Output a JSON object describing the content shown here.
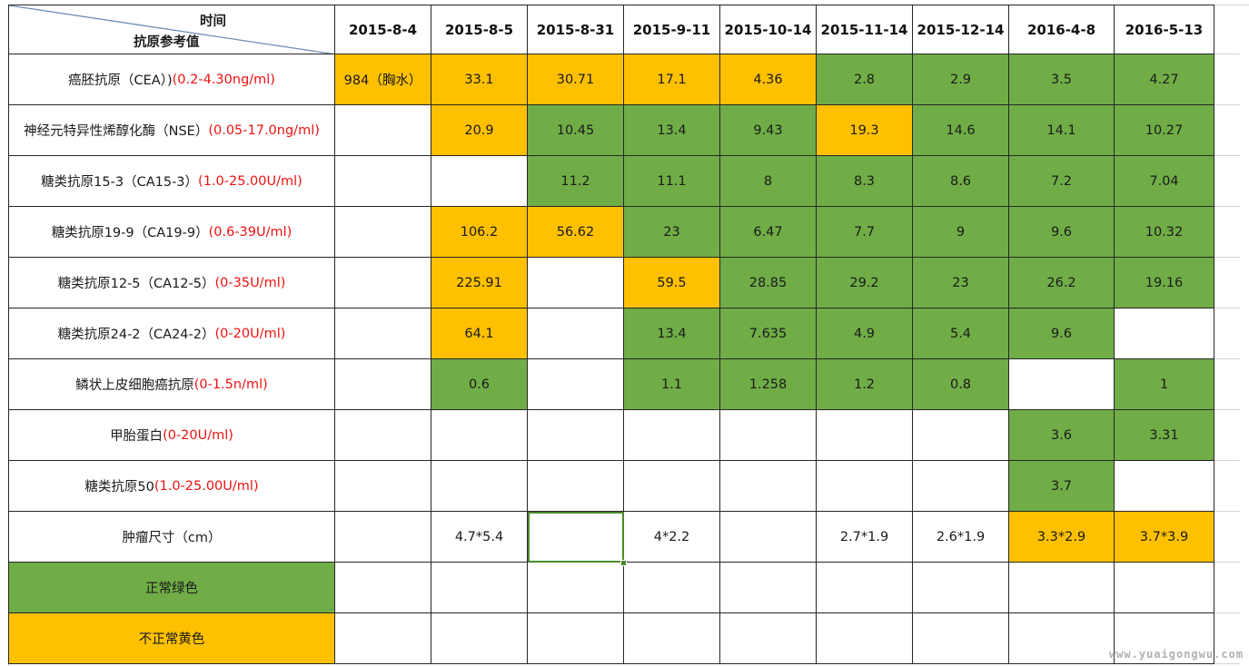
{
  "sheet": {
    "corner_time": "时间",
    "corner_ref": "抗原参考值",
    "dates": [
      "2015-8-4",
      "2015-8-5",
      "2015-8-31",
      "2015-9-11",
      "2015-10-14",
      "2015-11-14",
      "2015-12-14",
      "2016-4-8",
      "2016-5-13"
    ],
    "rows": [
      {
        "name": "癌胚抗原（CEA）)",
        "range": "(0.2-4.30ng/ml)",
        "cells": [
          {
            "v": "984（胸水）",
            "c": "y"
          },
          {
            "v": "33.1",
            "c": "y"
          },
          {
            "v": "30.71",
            "c": "y"
          },
          {
            "v": "17.1",
            "c": "y"
          },
          {
            "v": "4.36",
            "c": "y"
          },
          {
            "v": "2.8",
            "c": "g"
          },
          {
            "v": "2.9",
            "c": "g"
          },
          {
            "v": "3.5",
            "c": "g"
          },
          {
            "v": "4.27",
            "c": "g"
          }
        ]
      },
      {
        "name": "神经元特异性烯醇化酶（NSE）",
        "range": "(0.05-17.0ng/ml)",
        "cells": [
          {
            "v": "",
            "c": ""
          },
          {
            "v": "20.9",
            "c": "y"
          },
          {
            "v": "10.45",
            "c": "g"
          },
          {
            "v": "13.4",
            "c": "g"
          },
          {
            "v": "9.43",
            "c": "g"
          },
          {
            "v": "19.3",
            "c": "y"
          },
          {
            "v": "14.6",
            "c": "g"
          },
          {
            "v": "14.1",
            "c": "g"
          },
          {
            "v": "10.27",
            "c": "g"
          }
        ]
      },
      {
        "name": "糖类抗原15-3（CA15-3）",
        "range": "(1.0-25.00U/ml)",
        "cells": [
          {
            "v": "",
            "c": ""
          },
          {
            "v": "",
            "c": ""
          },
          {
            "v": "11.2",
            "c": "g"
          },
          {
            "v": "11.1",
            "c": "g"
          },
          {
            "v": "8",
            "c": "g"
          },
          {
            "v": "8.3",
            "c": "g"
          },
          {
            "v": "8.6",
            "c": "g"
          },
          {
            "v": "7.2",
            "c": "g"
          },
          {
            "v": "7.04",
            "c": "g"
          }
        ]
      },
      {
        "name": "糖类抗原19-9（CA19-9）",
        "range": "(0.6-39U/ml)",
        "cells": [
          {
            "v": "",
            "c": ""
          },
          {
            "v": "106.2",
            "c": "y"
          },
          {
            "v": "56.62",
            "c": "y"
          },
          {
            "v": "23",
            "c": "g"
          },
          {
            "v": "6.47",
            "c": "g"
          },
          {
            "v": "7.7",
            "c": "g"
          },
          {
            "v": "9",
            "c": "g"
          },
          {
            "v": "9.6",
            "c": "g"
          },
          {
            "v": "10.32",
            "c": "g"
          }
        ]
      },
      {
        "name": "糖类抗原12-5（CA12-5）",
        "range": "(0-35U/ml)",
        "cells": [
          {
            "v": "",
            "c": ""
          },
          {
            "v": "225.91",
            "c": "y"
          },
          {
            "v": "",
            "c": ""
          },
          {
            "v": "59.5",
            "c": "y"
          },
          {
            "v": "28.85",
            "c": "g"
          },
          {
            "v": "29.2",
            "c": "g"
          },
          {
            "v": "23",
            "c": "g"
          },
          {
            "v": "26.2",
            "c": "g"
          },
          {
            "v": "19.16",
            "c": "g"
          }
        ]
      },
      {
        "name": "糖类抗原24-2（CA24-2）",
        "range": "(0-20U/ml)",
        "cells": [
          {
            "v": "",
            "c": ""
          },
          {
            "v": "64.1",
            "c": "y"
          },
          {
            "v": "",
            "c": ""
          },
          {
            "v": "13.4",
            "c": "g"
          },
          {
            "v": "7.635",
            "c": "g"
          },
          {
            "v": "4.9",
            "c": "g"
          },
          {
            "v": "5.4",
            "c": "g"
          },
          {
            "v": "9.6",
            "c": "g"
          },
          {
            "v": "",
            "c": ""
          }
        ]
      },
      {
        "name": "鳞状上皮细胞癌抗原",
        "range": "(0-1.5n/ml)",
        "cells": [
          {
            "v": "",
            "c": ""
          },
          {
            "v": "0.6",
            "c": "g"
          },
          {
            "v": "",
            "c": ""
          },
          {
            "v": "1.1",
            "c": "g"
          },
          {
            "v": "1.258",
            "c": "g"
          },
          {
            "v": "1.2",
            "c": "g"
          },
          {
            "v": "0.8",
            "c": "g"
          },
          {
            "v": "",
            "c": ""
          },
          {
            "v": "1",
            "c": "g"
          }
        ]
      },
      {
        "name": "甲胎蛋白",
        "range": "(0-20U/ml)",
        "cells": [
          {
            "v": "",
            "c": ""
          },
          {
            "v": "",
            "c": ""
          },
          {
            "v": "",
            "c": ""
          },
          {
            "v": "",
            "c": ""
          },
          {
            "v": "",
            "c": ""
          },
          {
            "v": "",
            "c": ""
          },
          {
            "v": "",
            "c": ""
          },
          {
            "v": "3.6",
            "c": "g"
          },
          {
            "v": "3.31",
            "c": "g"
          }
        ]
      },
      {
        "name": "糖类抗原50",
        "range": "(1.0-25.00U/ml)",
        "cells": [
          {
            "v": "",
            "c": ""
          },
          {
            "v": "",
            "c": ""
          },
          {
            "v": "",
            "c": ""
          },
          {
            "v": "",
            "c": ""
          },
          {
            "v": "",
            "c": ""
          },
          {
            "v": "",
            "c": ""
          },
          {
            "v": "",
            "c": ""
          },
          {
            "v": "3.7",
            "c": "g"
          },
          {
            "v": "",
            "c": ""
          }
        ]
      },
      {
        "name": "肿瘤尺寸（cm）",
        "range": "",
        "cells": [
          {
            "v": "",
            "c": ""
          },
          {
            "v": "4.7*5.4",
            "c": ""
          },
          {
            "v": "",
            "c": "",
            "selected": true
          },
          {
            "v": "4*2.2",
            "c": ""
          },
          {
            "v": "",
            "c": ""
          },
          {
            "v": "2.7*1.9",
            "c": ""
          },
          {
            "v": "2.6*1.9",
            "c": ""
          },
          {
            "v": "3.3*2.9",
            "c": "y"
          },
          {
            "v": "3.7*3.9",
            "c": "y"
          }
        ]
      }
    ],
    "legend": [
      {
        "label": "正常绿色",
        "c": "g"
      },
      {
        "label": "不正常黄色",
        "c": "y"
      }
    ]
  },
  "colors": {
    "normal_green": "#70ad47",
    "abnormal_yellow": "#ffc000",
    "range_red": "#ee1111",
    "grid_line": "#262626"
  },
  "watermark": "www.yuaigongwu.com"
}
